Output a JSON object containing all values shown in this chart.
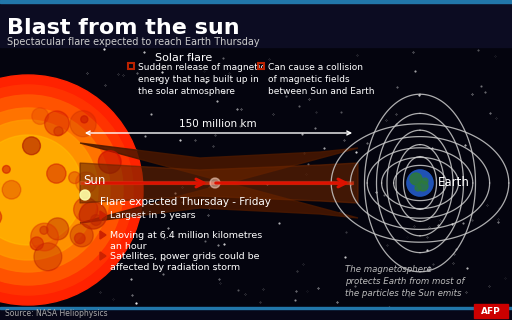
{
  "title": "Blast from the sun",
  "subtitle": "Spectacular flare expected to reach Earth Thursday",
  "bg_color": "#060612",
  "header_bg": "#0c0c22",
  "title_color": "#ffffff",
  "subtitle_color": "#cccccc",
  "header_bar_color": "#2277aa",
  "text_color": "#ffffff",
  "red_color": "#bb2200",
  "solar_flare_label": "Solar flare",
  "bullet1_text": "Sudden release of magnetic\nenergy that has built up in\nthe solar atmosphere",
  "bullet2_text": "Can cause a collision\nof magnetic fields\nbetween Sun and Earth",
  "distance_label": "150 million km",
  "sun_label": "Sun",
  "earth_label": "Earth",
  "flare_header": "Flare expected Thursday - Friday",
  "flare_bullets": [
    "Largest in 5 years",
    "Moving at 6.4 million kilometres\nan hour",
    "Satellites, power grids could be\naffected by radiation storm"
  ],
  "magnetosphere_text": "The magnetosphere\nprotects Earth from most of\nthe particles the Sun emits",
  "source_text": "Source: NASA Heliophysics"
}
